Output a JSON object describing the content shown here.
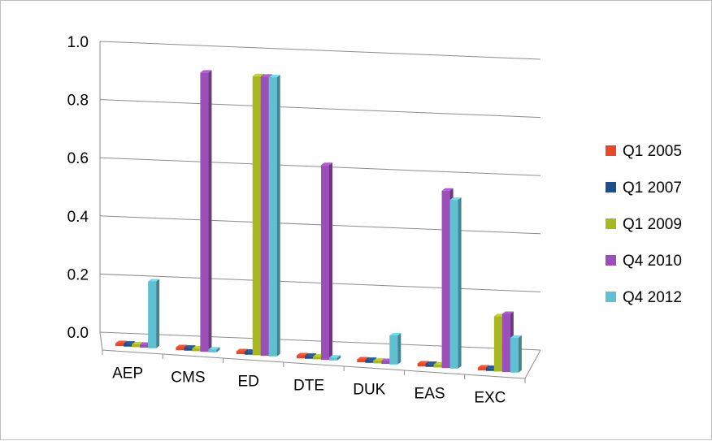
{
  "chart_data": {
    "type": "bar",
    "title": "",
    "xlabel": "",
    "ylabel": "",
    "ylim": [
      0,
      1.0
    ],
    "yticks": [
      "0.0",
      "0.2",
      "0.4",
      "0.6",
      "0.8",
      "1.0"
    ],
    "grid": true,
    "legend_position": "right",
    "categories": [
      "AEP",
      "CMS",
      "ED",
      "DTE",
      "DUK",
      "EAS",
      "EXC"
    ],
    "series": [
      {
        "name": "Q1 2005",
        "color": "#e8472a",
        "values": [
          0.01,
          0.01,
          0.01,
          0.01,
          0.01,
          0.01,
          0.01
        ]
      },
      {
        "name": "Q1 2007",
        "color": "#1f4e8c",
        "values": [
          0.01,
          0.01,
          0.01,
          0.01,
          0.01,
          0.01,
          0.01
        ]
      },
      {
        "name": "Q1 2009",
        "color": "#a8b820",
        "values": [
          0.01,
          0.01,
          0.96,
          0.01,
          0.01,
          0.01,
          0.19
        ]
      },
      {
        "name": "Q4 2010",
        "color": "#9b4fb8",
        "values": [
          0.01,
          0.96,
          0.96,
          0.67,
          0.01,
          0.61,
          0.2
        ]
      },
      {
        "name": "Q4 2012",
        "color": "#5ec0d0",
        "values": [
          0.23,
          0.01,
          0.96,
          0.01,
          0.1,
          0.58,
          0.12
        ]
      }
    ]
  }
}
